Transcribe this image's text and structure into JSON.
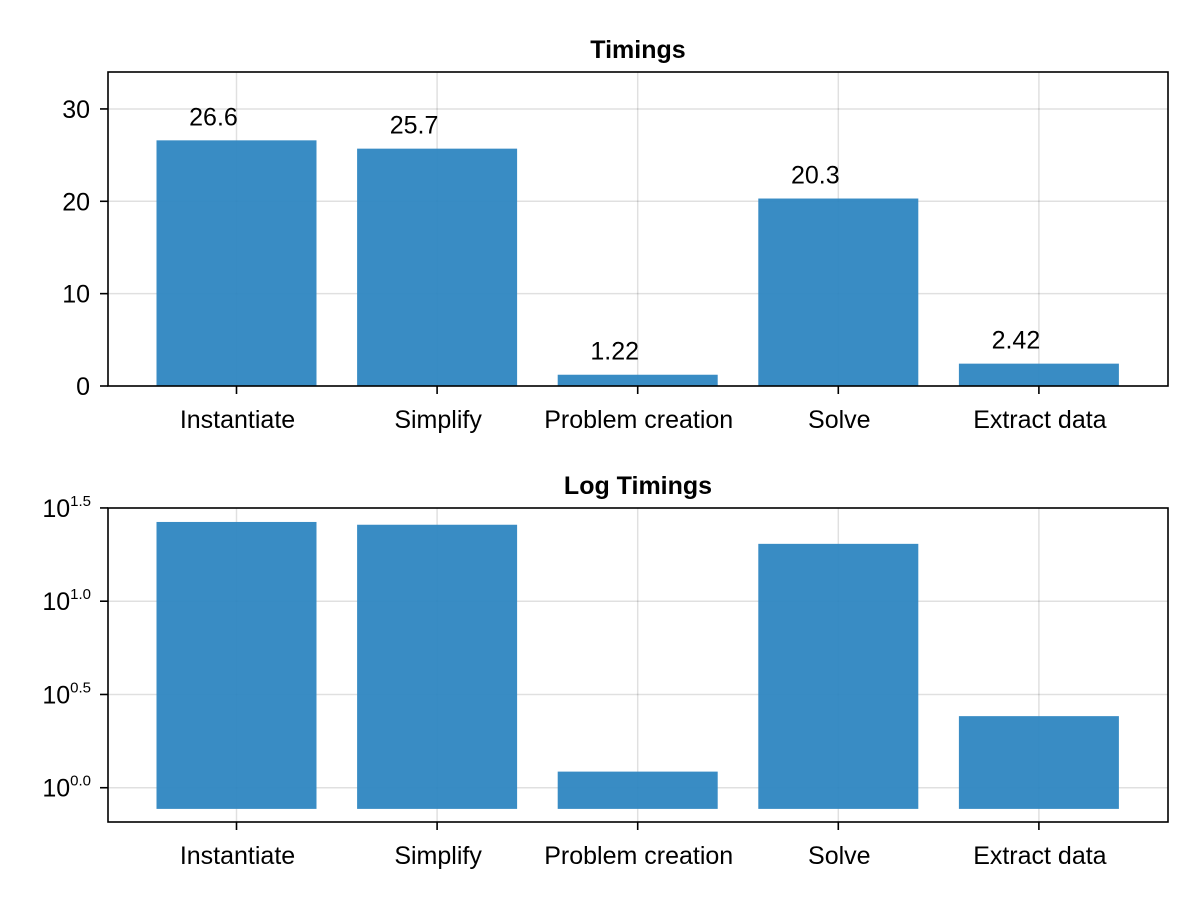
{
  "chart_data": [
    {
      "type": "bar",
      "title": "Timings",
      "categories": [
        "Instantiate",
        "Simplify",
        "Problem creation",
        "Solve",
        "Extract data"
      ],
      "values": [
        26.6,
        25.7,
        1.22,
        20.3,
        2.42
      ],
      "data_labels": [
        "26.6",
        "25.7",
        "1.22",
        "20.3",
        "2.42"
      ],
      "xlabel": "",
      "ylabel": "",
      "ylim": [
        0,
        34
      ],
      "y_ticks": [
        0,
        10,
        20,
        30
      ],
      "y_tick_labels": [
        "0",
        "10",
        "20",
        "30"
      ],
      "grid": true,
      "color": "#2e86c1"
    },
    {
      "type": "bar",
      "title": "Log Timings",
      "scale": "log10",
      "categories": [
        "Instantiate",
        "Simplify",
        "Problem creation",
        "Solve",
        "Extract data"
      ],
      "values": [
        26.6,
        25.7,
        1.22,
        20.3,
        2.42
      ],
      "xlabel": "",
      "ylabel": "",
      "ylim": [
        0.655,
        31.6
      ],
      "y_ticks": [
        1,
        3.162,
        10,
        31.62
      ],
      "y_tick_labels": [
        {
          "base": "10",
          "exp": "0.0"
        },
        {
          "base": "10",
          "exp": "0.5"
        },
        {
          "base": "10",
          "exp": "1.0"
        },
        {
          "base": "10",
          "exp": "1.5"
        }
      ],
      "bar_baseline": 0.77,
      "grid": true,
      "color": "#2e86c1"
    }
  ]
}
